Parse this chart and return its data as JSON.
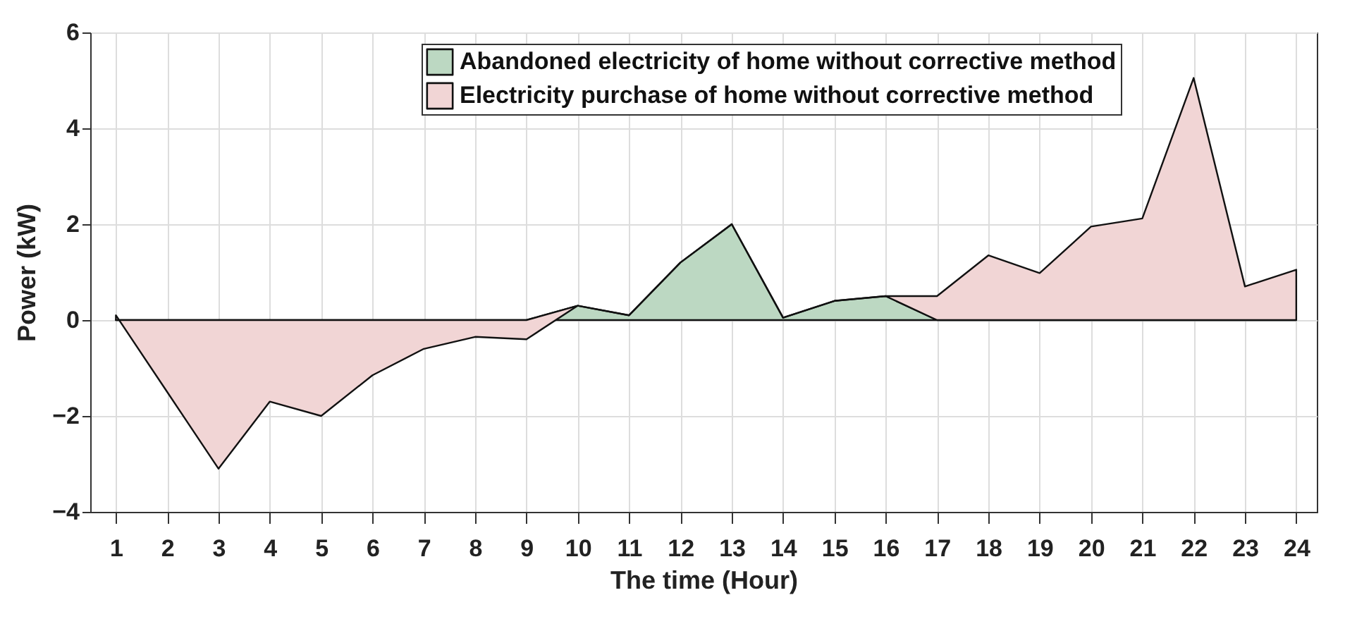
{
  "chart_data": {
    "type": "area",
    "stacked": true,
    "xlabel": "The time (Hour)",
    "ylabel": "Power (kW)",
    "x": [
      1,
      2,
      3,
      4,
      5,
      6,
      7,
      8,
      9,
      10,
      11,
      12,
      13,
      14,
      15,
      16,
      17,
      18,
      19,
      20,
      21,
      22,
      23,
      24
    ],
    "series": [
      {
        "name": "Abandoned electricity of home without corrective method",
        "color": "#bcd8c2",
        "values": [
          0,
          0,
          0,
          0,
          0,
          0,
          0,
          0,
          0,
          0.3,
          0.1,
          1.2,
          2.0,
          0.05,
          0.4,
          0.5,
          0,
          0,
          0,
          0,
          0,
          0,
          0,
          0
        ]
      },
      {
        "name": "Electricity purchase of home without corrective method",
        "color": "#f1d5d5",
        "values": [
          0.1,
          -1.5,
          -3.1,
          -1.7,
          -2.0,
          -1.15,
          -0.6,
          -0.35,
          -0.4,
          0,
          0,
          0,
          0,
          0,
          0,
          0,
          0.5,
          1.35,
          0.98,
          1.95,
          2.12,
          5.05,
          0.7,
          1.05
        ]
      }
    ],
    "xlim": [
      0.5,
      24.4
    ],
    "xticks": [
      1,
      2,
      3,
      4,
      5,
      6,
      7,
      8,
      9,
      10,
      11,
      12,
      13,
      14,
      15,
      16,
      17,
      18,
      19,
      20,
      21,
      22,
      23,
      24
    ],
    "ylim": [
      -4,
      6
    ],
    "yticks": [
      -4,
      -2,
      0,
      2,
      4,
      6
    ],
    "grid": true,
    "legend": "top"
  }
}
